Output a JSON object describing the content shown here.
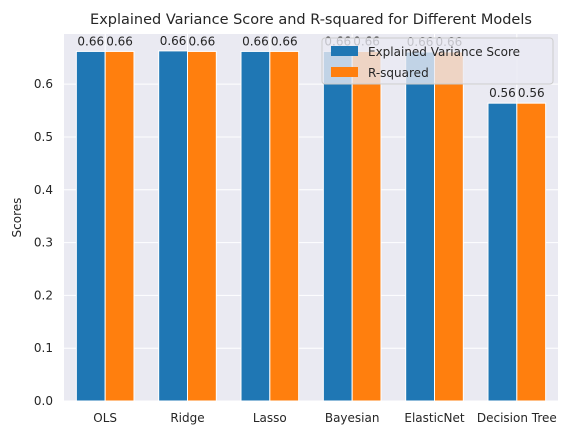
{
  "chart_data": {
    "type": "bar",
    "title": "Explained Variance Score and R-squared for Different Models",
    "xlabel": "",
    "ylabel": "Scores",
    "categories": [
      "OLS",
      "Ridge",
      "Lasso",
      "Bayesian",
      "ElasticNet",
      "Decision Tree"
    ],
    "series": [
      {
        "name": "Explained Variance Score",
        "color": "#1f77b4",
        "values": [
          0.662,
          0.663,
          0.662,
          0.662,
          0.661,
          0.564
        ],
        "labels": [
          "0.66",
          "0.66",
          "0.66",
          "0.66",
          "0.66",
          "0.56"
        ]
      },
      {
        "name": "R-squared",
        "color": "#ff7f0e",
        "values": [
          0.662,
          0.662,
          0.662,
          0.662,
          0.661,
          0.564
        ],
        "labels": [
          "0.66",
          "0.66",
          "0.66",
          "0.66",
          "0.66",
          "0.56"
        ]
      }
    ],
    "ylim": [
      0,
      0.695
    ],
    "yticks": [
      0.0,
      0.1,
      0.2,
      0.3,
      0.4,
      0.5,
      0.6
    ],
    "ytick_labels": [
      "0.0",
      "0.1",
      "0.2",
      "0.3",
      "0.4",
      "0.5",
      "0.6"
    ],
    "grid": true,
    "background_color": "#eaeaf2",
    "legend_position": "top-right"
  }
}
